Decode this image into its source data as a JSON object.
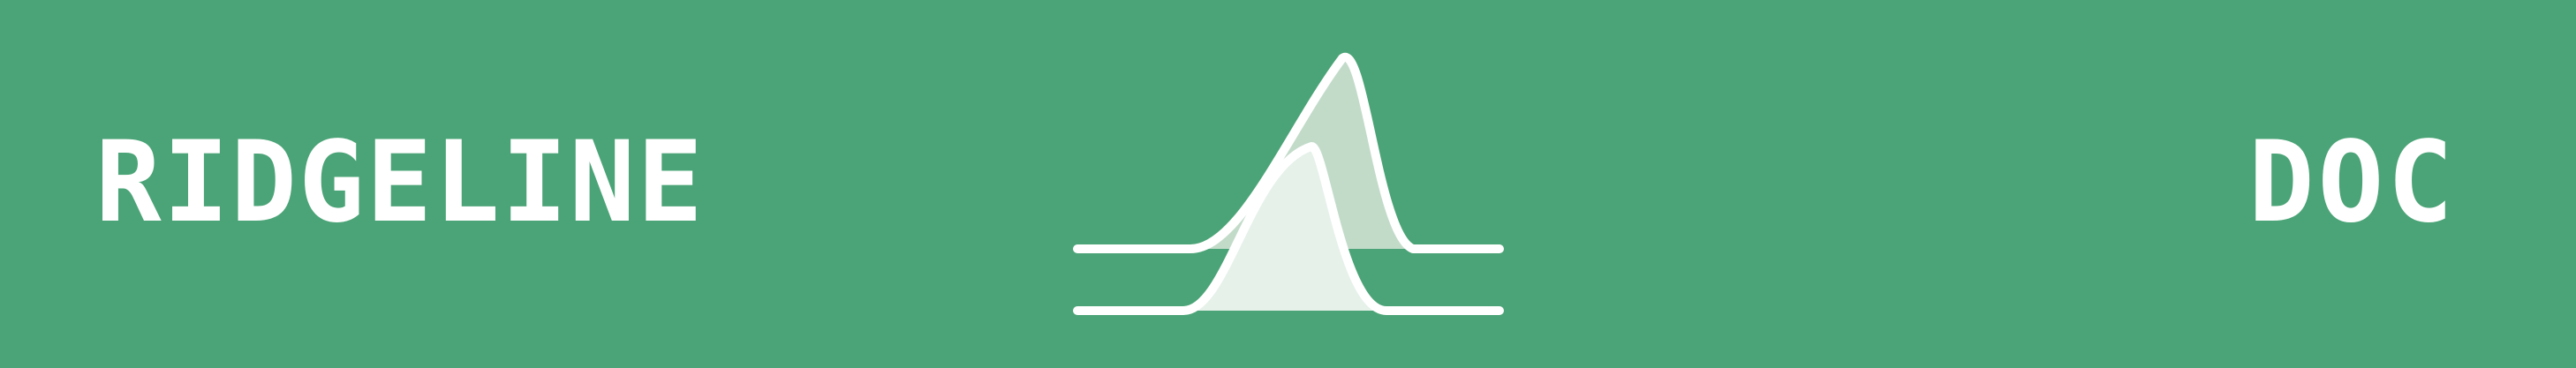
{
  "banner": {
    "left_text": "RIDGELINE",
    "right_text": "DOC"
  },
  "colors": {
    "background": "#4ba477",
    "foreground": "#ffffff",
    "ridge_fill_back": "#c2dbc9",
    "ridge_fill_front": "#e6f1ea"
  },
  "logo": {
    "icon": "ridgeline-plot-icon"
  }
}
